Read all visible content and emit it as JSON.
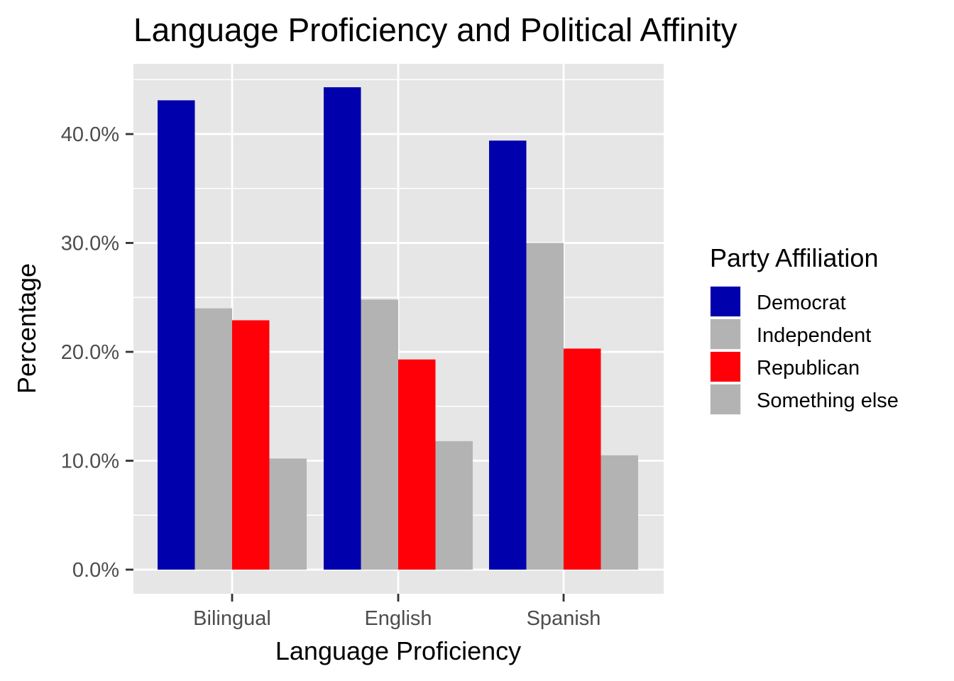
{
  "chart_data": {
    "type": "bar",
    "title": "Language Proficiency and Political Affinity",
    "xlabel": "Language Proficiency",
    "ylabel": "Percentage",
    "categories": [
      "Bilingual",
      "English",
      "Spanish"
    ],
    "series": [
      {
        "name": "Democrat",
        "values": [
          43.1,
          44.3,
          39.4
        ],
        "color": "#0000AD"
      },
      {
        "name": "Independent",
        "values": [
          24.0,
          24.8,
          30.0
        ],
        "color": "#B3B3B3"
      },
      {
        "name": "Republican",
        "values": [
          22.9,
          19.3,
          20.3
        ],
        "color": "#FF0008"
      },
      {
        "name": "Something else",
        "values": [
          10.2,
          11.8,
          10.5
        ],
        "color": "#B3B3B3"
      }
    ],
    "ylim": [
      0,
      46.5
    ],
    "yticks": [
      {
        "value": 0,
        "label": "0.0%"
      },
      {
        "value": 10,
        "label": "10.0%"
      },
      {
        "value": 20,
        "label": "20.0%"
      },
      {
        "value": 30,
        "label": "30.0%"
      },
      {
        "value": 40,
        "label": "40.0%"
      }
    ],
    "legend": {
      "title": "Party Affiliation",
      "position": "right"
    },
    "grid": true,
    "panel_background": "#E6E6E6"
  }
}
